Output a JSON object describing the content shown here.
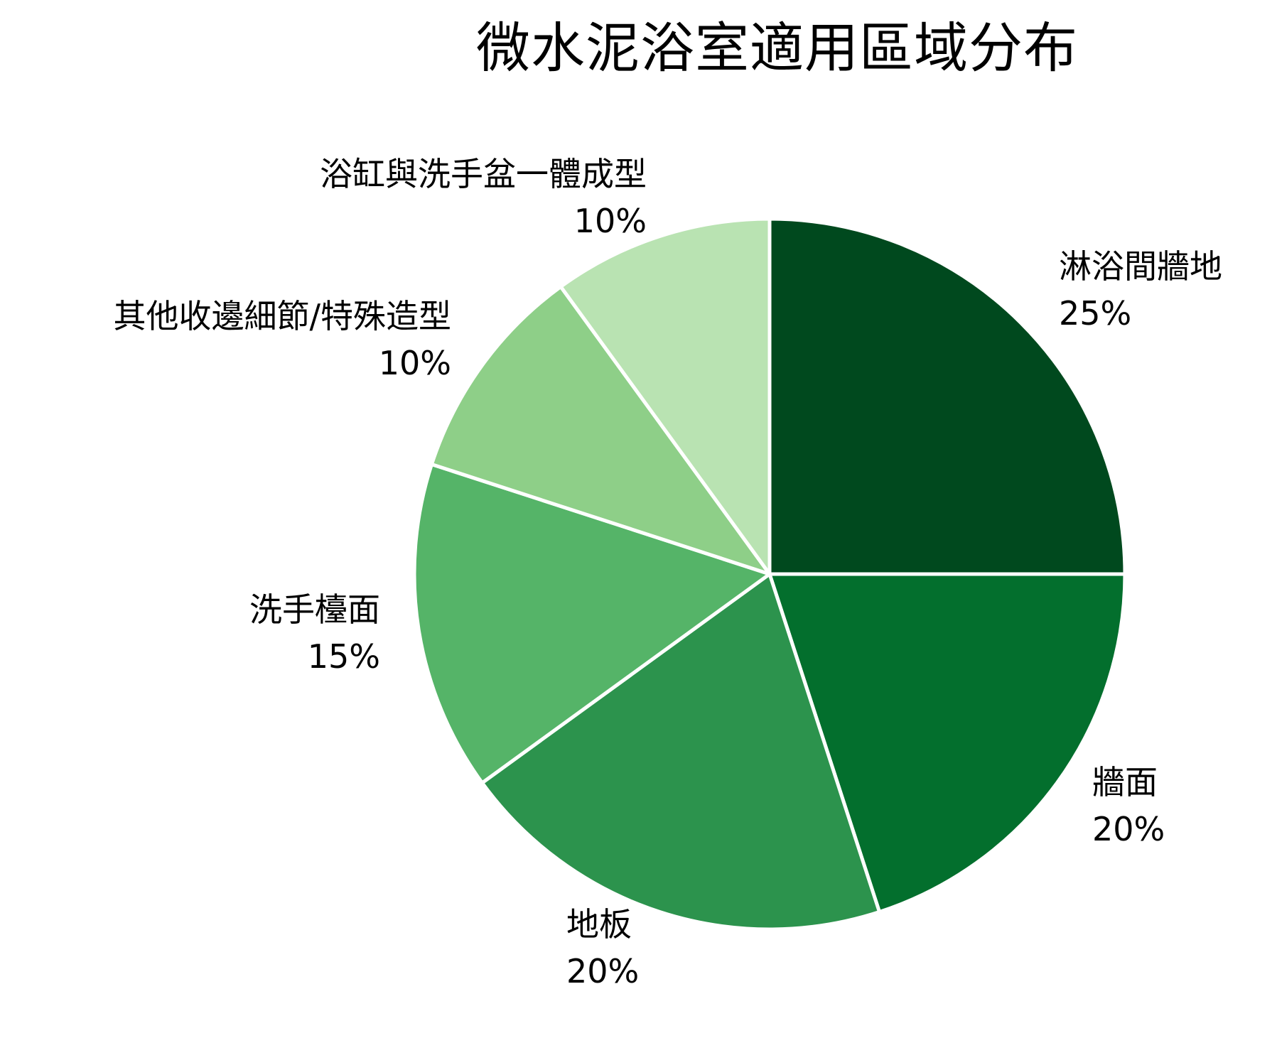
{
  "title": "微水泥浴室適用區域分布",
  "chart_data": {
    "type": "pie",
    "title": "微水泥浴室適用區域分布",
    "start_angle": "12 o'clock",
    "direction": "clockwise",
    "categories": [
      "淋浴間牆地",
      "牆面",
      "地板",
      "洗手檯面",
      "其他收邊細節/特殊造型",
      "浴缸與洗手盆一體成型"
    ],
    "values": [
      25,
      20,
      20,
      15,
      10,
      10
    ],
    "unit": "%",
    "colors": [
      "#00491e",
      "#036f2d",
      "#2c934d",
      "#55b468",
      "#8ecf88",
      "#b9e3b2"
    ],
    "legend": "none (direct labels)"
  },
  "labels": [
    {
      "name": "淋浴間牆地",
      "pct": "25%"
    },
    {
      "name": "牆面",
      "pct": "20%"
    },
    {
      "name": "地板",
      "pct": "20%"
    },
    {
      "name": "洗手檯面",
      "pct": "15%"
    },
    {
      "name": "其他收邊細節/特殊造型",
      "pct": "10%"
    },
    {
      "name": "浴缸與洗手盆一體成型",
      "pct": "10%"
    }
  ]
}
